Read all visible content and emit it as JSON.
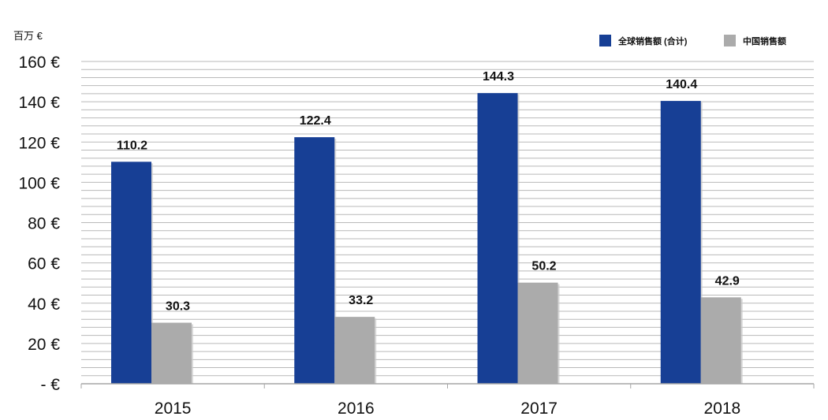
{
  "chart_data": {
    "type": "bar",
    "unit_label": "百万 €",
    "categories": [
      "2015",
      "2016",
      "2017",
      "2018"
    ],
    "series": [
      {
        "name": "全球销售额 (合计)",
        "values": [
          110.2,
          122.4,
          144.3,
          140.4
        ],
        "labels": [
          "110.2",
          "122.4",
          "144.3",
          "140.4"
        ],
        "color": "#173f95"
      },
      {
        "name": "中国销售额",
        "values": [
          30.3,
          33.2,
          50.2,
          42.9
        ],
        "labels": [
          "30.3",
          "33.2",
          "50.2",
          "42.9"
        ],
        "color": "#ababab"
      }
    ],
    "ylim": [
      0,
      160
    ],
    "yticks": [
      0,
      20,
      40,
      60,
      80,
      100,
      120,
      140,
      160
    ],
    "ytick_labels": [
      "-   €",
      "20 €",
      "40 €",
      "60 €",
      "80 €",
      "100 €",
      "120 €",
      "140 €",
      "160 €"
    ],
    "minor_step": 4,
    "grid": true,
    "legend_position": "top-right",
    "grid_color": "#b9b9b9",
    "axis_color": "#a6a6a6"
  }
}
